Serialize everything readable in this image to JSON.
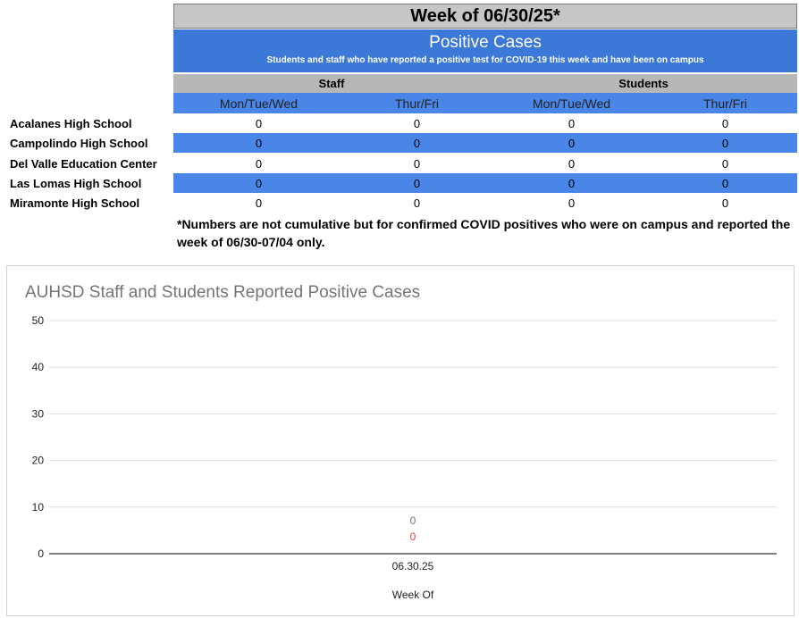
{
  "header": {
    "week_title": "Week of 06/30/25*",
    "section_title": "Positive Cases",
    "section_subtitle": "Students and staff who have reported a positive test for COVID-19 this week and have been on campus"
  },
  "table": {
    "groups": [
      "Staff",
      "Students"
    ],
    "columns": [
      "Mon/Tue/Wed",
      "Thur/Fri",
      "Mon/Tue/Wed",
      "Thur/Fri"
    ],
    "rows": [
      {
        "school": "Acalanes High School",
        "values": [
          "0",
          "0",
          "0",
          "0"
        ]
      },
      {
        "school": "Campolindo High School",
        "values": [
          "0",
          "0",
          "0",
          "0"
        ]
      },
      {
        "school": "Del Valle Education Center",
        "values": [
          "0",
          "0",
          "0",
          "0"
        ]
      },
      {
        "school": "Las Lomas High School",
        "values": [
          "0",
          "0",
          "0",
          "0"
        ]
      },
      {
        "school": "Miramonte High School",
        "values": [
          "0",
          "0",
          "0",
          "0"
        ]
      }
    ],
    "footnote": "*Numbers are not cumulative but for confirmed COVID positives who were on campus and reported the week of 06/30-07/04 only."
  },
  "colors": {
    "header_gray": "#c6c6c6",
    "accent_blue": "#3c78d8",
    "row_blue": "#4a86e8",
    "series_gray": "#757575",
    "series_red": "#db4437"
  },
  "chart_data": {
    "type": "line",
    "title": "AUHSD Staff and Students Reported Positive Cases",
    "xlabel": "Week Of",
    "ylabel": "",
    "ylim": [
      0,
      50
    ],
    "yticks": [
      0,
      10,
      20,
      30,
      40,
      50
    ],
    "categories": [
      "06.30.25"
    ],
    "series": [
      {
        "values": [
          0
        ],
        "color": "#757575"
      },
      {
        "values": [
          0
        ],
        "color": "#db4437"
      }
    ],
    "grid": true,
    "legend": "none"
  }
}
